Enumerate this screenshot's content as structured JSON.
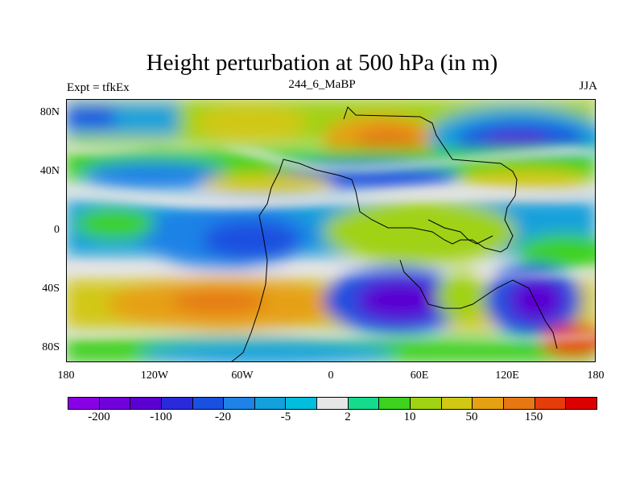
{
  "title": "Height perturbation at 500 hPa (in m)",
  "left_label": "Expt = tfkEx",
  "center_label": "244_6_MaBP",
  "right_label": "JJA",
  "y_ticks": [
    "80N",
    "40N",
    "0",
    "40S",
    "80S"
  ],
  "x_ticks": [
    "180",
    "120W",
    "60W",
    "0",
    "60E",
    "120E",
    "180"
  ],
  "colorbar": {
    "colors": [
      "#8a00e6",
      "#7000dc",
      "#5a00d2",
      "#2a2adc",
      "#1a50e0",
      "#1e82e6",
      "#14a0dc",
      "#00bedc",
      "#e6e6e6",
      "#14dc8c",
      "#3cd21e",
      "#a0d214",
      "#d2c814",
      "#e6a014",
      "#e67814",
      "#e63c0a",
      "#dc0000"
    ],
    "labels": [
      "-200",
      "-100",
      "-20",
      "-5",
      "2",
      "10",
      "50",
      "150"
    ]
  },
  "colors": {
    "deep_negative": "#5a00d2",
    "negative": "#1a50e0",
    "mild_negative": "#14a0dc",
    "neutral": "#e6e6e6",
    "mild_positive": "#3cd21e",
    "positive": "#a0d214",
    "strong_positive": "#e6a014",
    "peak": "#dc0000"
  }
}
